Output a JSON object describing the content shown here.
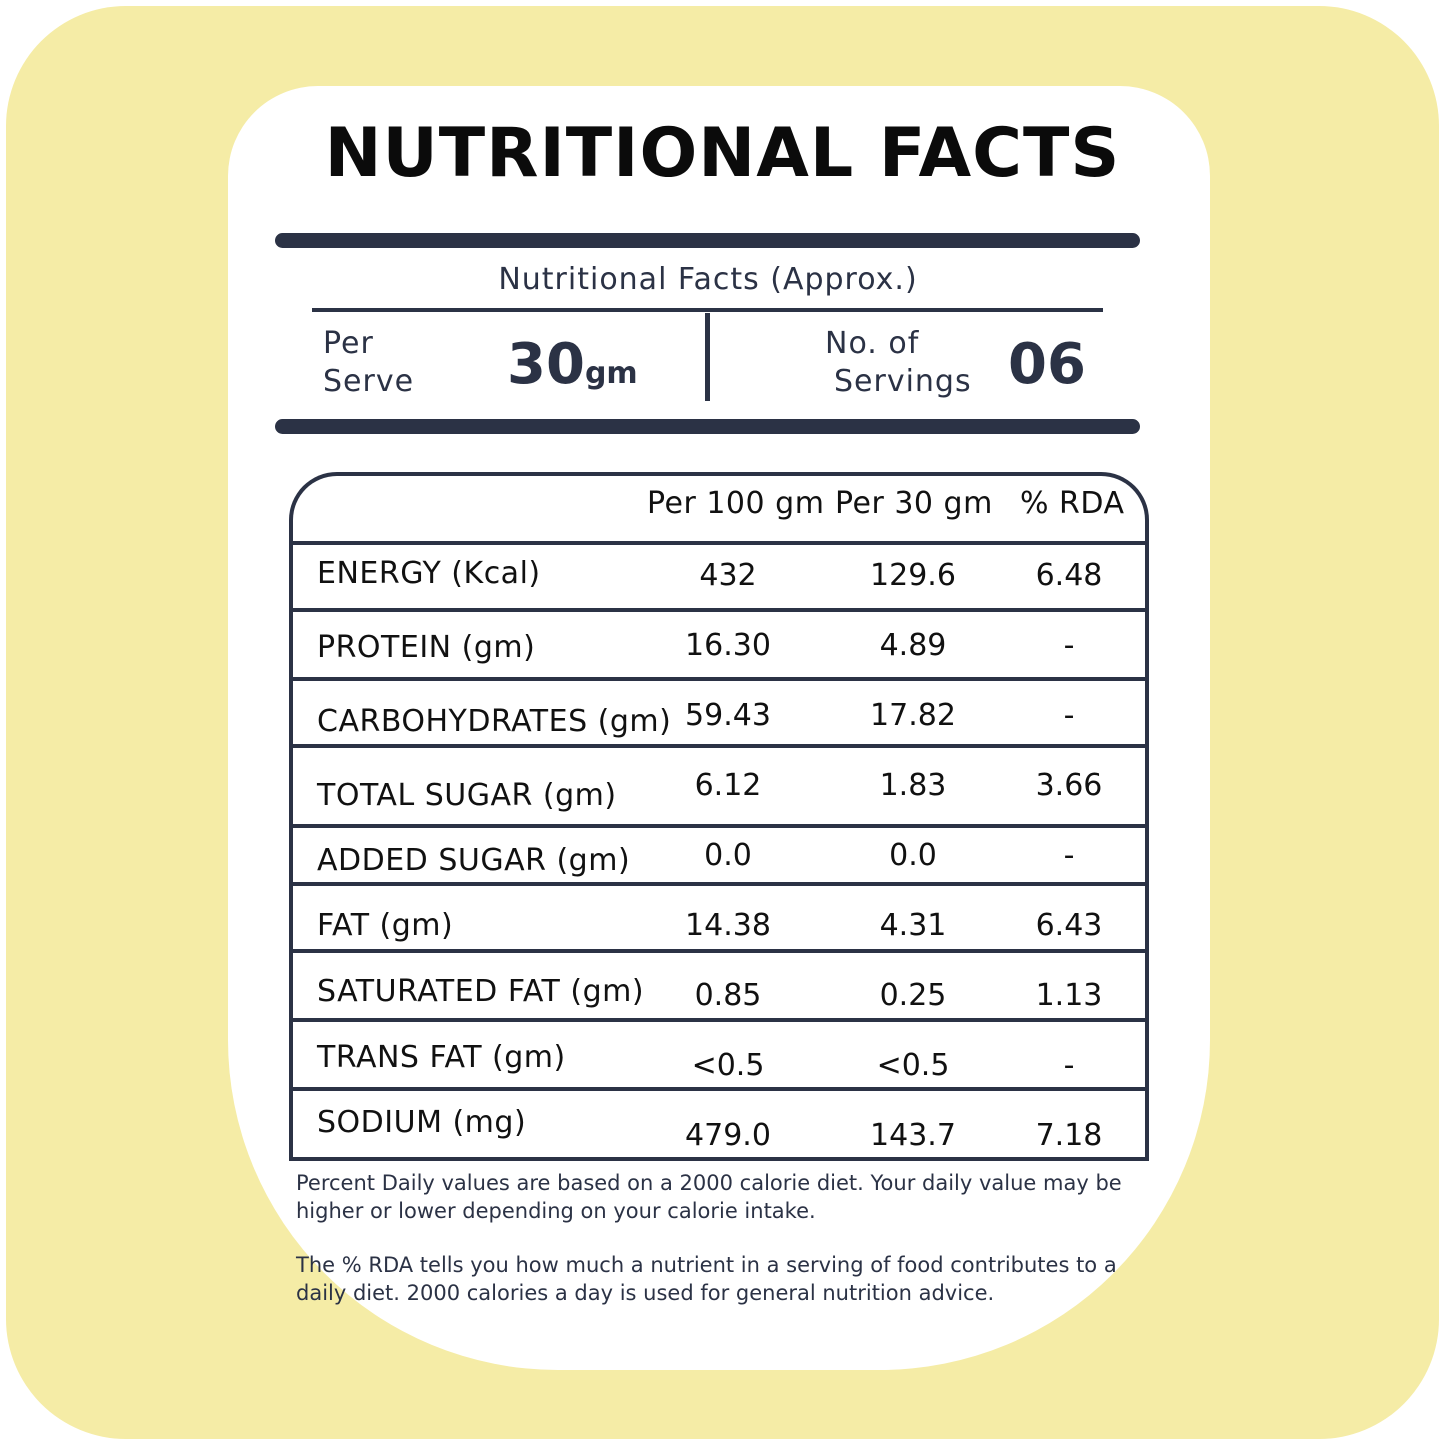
{
  "title": "NUTRITIONAL FACTS",
  "subtitle": "Nutritional Facts (Approx.)",
  "per_serve": {
    "label_line1": "Per",
    "label_line2": "Serve",
    "value": "30",
    "unit": "gm"
  },
  "servings": {
    "label_line1": "No. of",
    "label_line2": "Servings",
    "value": "06"
  },
  "table": {
    "headers": [
      "Per 100 gm",
      "Per 30 gm",
      "% RDA"
    ],
    "rows": [
      {
        "name": "ENERGY (Kcal)",
        "per100": "432",
        "per30": "129.6",
        "rda": "6.48"
      },
      {
        "name": "PROTEIN (gm)",
        "per100": "16.30",
        "per30": "4.89",
        "rda": "-"
      },
      {
        "name": "CARBOHYDRATES (gm)",
        "per100": "59.43",
        "per30": "17.82",
        "rda": "-"
      },
      {
        "name": "TOTAL SUGAR (gm)",
        "per100": "6.12",
        "per30": "1.83",
        "rda": "3.66"
      },
      {
        "name": "ADDED SUGAR (gm)",
        "per100": "0.0",
        "per30": "0.0",
        "rda": "-"
      },
      {
        "name": "FAT (gm)",
        "per100": "14.38",
        "per30": "4.31",
        "rda": "6.43"
      },
      {
        "name": "SATURATED FAT (gm)",
        "per100": "0.85",
        "per30": "0.25",
        "rda": "1.13"
      },
      {
        "name": "TRANS FAT (gm)",
        "per100": "<0.5",
        "per30": "<0.5",
        "rda": "-"
      },
      {
        "name": "SODIUM (mg)",
        "per100": "479.0",
        "per30": "143.7",
        "rda": "7.18"
      }
    ]
  },
  "notes": [
    "Percent Daily values are based on a 2000 calorie diet. Your daily value may be higher or lower depending on your calorie intake.",
    "The % RDA tells you how much a nutrient in a serving of food contributes to a daily diet. 2000 calories a day is used for general nutrition advice."
  ],
  "colors": {
    "background": "#f5eca6",
    "card": "#ffffff",
    "ink": "#2b3245"
  }
}
